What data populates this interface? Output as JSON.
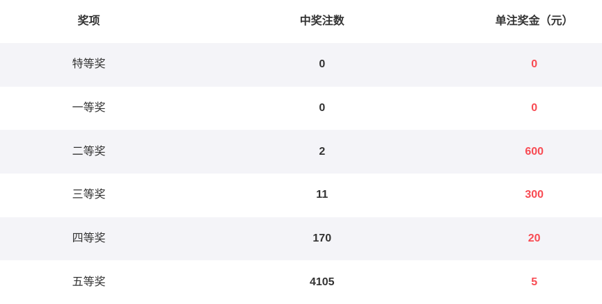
{
  "table": {
    "columns": [
      {
        "label": "奖项"
      },
      {
        "label": "中奖注数"
      },
      {
        "label": "单注奖金（元）"
      }
    ],
    "rows": [
      {
        "prize": "特等奖",
        "count": "0",
        "amount": "0"
      },
      {
        "prize": "一等奖",
        "count": "0",
        "amount": "0"
      },
      {
        "prize": "二等奖",
        "count": "2",
        "amount": "600"
      },
      {
        "prize": "三等奖",
        "count": "11",
        "amount": "300"
      },
      {
        "prize": "四等奖",
        "count": "170",
        "amount": "20"
      },
      {
        "prize": "五等奖",
        "count": "4105",
        "amount": "5"
      }
    ],
    "colors": {
      "amount_text": "#f84b53",
      "body_text": "#333333",
      "stripe_background": "#f4f4f8"
    }
  }
}
